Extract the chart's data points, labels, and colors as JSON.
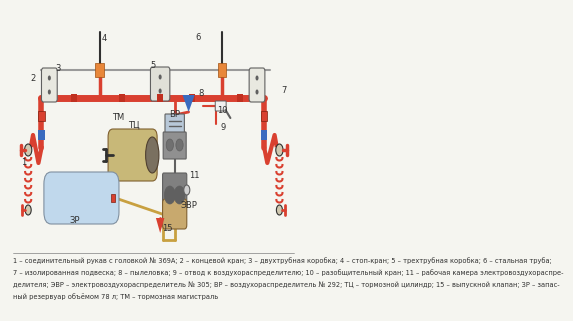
{
  "background_color": "#f5f5f0",
  "main_pipe_color": "#d94030",
  "thin_pipe_color": "#d94030",
  "blue_color": "#3a6bbf",
  "orange_color": "#e8873a",
  "tan_color": "#c8a96e",
  "gray_color": "#9a9a9a",
  "dark_gray": "#606060",
  "light_blue_color": "#c0d8ec",
  "dark_color": "#303030",
  "label_color": "#303030",
  "yellow_pipe": "#c8a040",
  "caption_fontsize": 4.8,
  "label_fontsize": 6.0,
  "caption_text": "1 – соединительный рукав с головкой № 369А; 2 – концевой кран; 3 – двухтрубная коробка; 4 – стоп-кран; 5 – трехтрубная коробка; 6 – стальная труба;\n7 – изолированная подвеска; 8 – пылеловка; 9 – отвод к воздухораспределителю; 10 – разобщительный кран; 11 – рабочая камера электровоздухораспре-\nделителя; ЭВР – электровоздухораспределитель № 305; ВР – воздухораспределитель № 292; ТЦ – тормозной цилиндр; 15 – выпускной клапан; ЗР – запас-\nный резервуар объёмом 78 л; ТМ – тормозная магистраль"
}
